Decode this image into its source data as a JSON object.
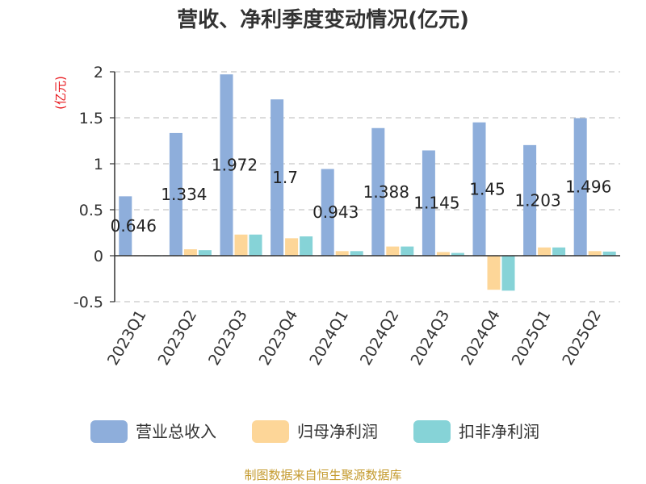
{
  "chart_data": {
    "type": "bar",
    "title": "营收、净利季度变动情况(亿元)",
    "unit_label": "(亿元)",
    "categories": [
      "2023Q1",
      "2023Q2",
      "2023Q3",
      "2023Q4",
      "2024Q1",
      "2024Q2",
      "2024Q3",
      "2024Q4",
      "2025Q1",
      "2025Q2"
    ],
    "series": [
      {
        "name": "营业总收入",
        "color": "#8eaedb",
        "values": [
          0.646,
          1.334,
          1.972,
          1.7,
          0.943,
          1.388,
          1.145,
          1.45,
          1.203,
          1.496
        ]
      },
      {
        "name": "归母净利润",
        "color": "#fdd698",
        "values": [
          0.005,
          0.07,
          0.23,
          0.19,
          0.05,
          0.1,
          0.04,
          -0.37,
          0.09,
          0.05
        ]
      },
      {
        "name": "扣非净利润",
        "color": "#86d3d7",
        "values": [
          0.003,
          0.06,
          0.23,
          0.21,
          0.05,
          0.1,
          0.03,
          -0.38,
          0.09,
          0.045
        ]
      }
    ],
    "data_labels": [
      "0.646",
      "1.334",
      "1.972",
      "1.7",
      "0.943",
      "1.388",
      "1.145",
      "1.45",
      "1.203",
      "1.496"
    ],
    "y_ticks": [
      "2",
      "1.5",
      "1",
      "0.5",
      "0",
      "-0.5"
    ],
    "ylim": [
      -0.5,
      2
    ],
    "grid": true,
    "legend_position": "bottom"
  },
  "source_note": "制图数据来自恒生聚源数据库"
}
